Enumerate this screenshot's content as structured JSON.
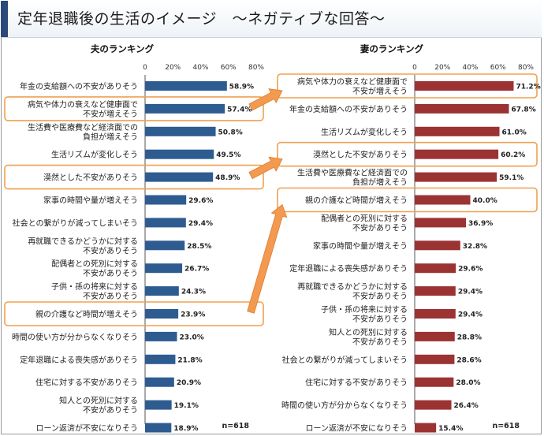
{
  "page_title": "定年退職後の生活のイメージ　～ネガティブな回答～",
  "colors": {
    "husband_bar": "#2e5c91",
    "wife_bar": "#9b3333",
    "highlight": "#f0a050",
    "arrow": "#f29a50",
    "axis": "#555555"
  },
  "chart_data": [
    {
      "type": "bar",
      "orientation": "horizontal",
      "title": "夫のランキング",
      "xlim": [
        0,
        80
      ],
      "xticks": [
        "0",
        "20%",
        "40%",
        "60%",
        "80%"
      ],
      "sample_size": "n=618",
      "categories": [
        [
          "年金の支給額への不安がありそう"
        ],
        [
          "病気や体力の衰えなど健康面で",
          "不安が増えそう"
        ],
        [
          "生活費や医療費など経済面での",
          "負担が増えそう"
        ],
        [
          "生活リズムが変化しそう"
        ],
        [
          "漠然とした不安がありそう"
        ],
        [
          "家事の時間や量が増えそう"
        ],
        [
          "社会との繋がりが減ってしまいそう"
        ],
        [
          "再就職できるかどうかに対する",
          "不安がありそう"
        ],
        [
          "配偶者との死別に対する",
          "不安がありそう"
        ],
        [
          "子供・孫の将来に対する",
          "不安がありそう"
        ],
        [
          "親の介護など時間が増えそう"
        ],
        [
          "時間の使い方が分からなくなりそう"
        ],
        [
          "定年退職による喪失感がありそう"
        ],
        [
          "住宅に対する不安がありそう"
        ],
        [
          "知人との死別に対する",
          "不安がありそう"
        ],
        [
          "ローン返済が不安になりそう"
        ]
      ],
      "values": [
        58.9,
        57.4,
        50.8,
        49.5,
        48.9,
        29.6,
        29.4,
        28.5,
        26.7,
        24.3,
        23.9,
        23.0,
        21.8,
        20.9,
        19.1,
        18.9
      ],
      "value_labels": [
        "58.9%",
        "57.4%",
        "50.8%",
        "49.5%",
        "48.9%",
        "29.6%",
        "29.4%",
        "28.5%",
        "26.7%",
        "24.3%",
        "23.9%",
        "23.0%",
        "21.8%",
        "20.9%",
        "19.1%",
        "18.9%"
      ],
      "highlighted_indices": [
        1,
        4,
        10
      ]
    },
    {
      "type": "bar",
      "orientation": "horizontal",
      "title": "妻のランキング",
      "xlim": [
        0,
        80
      ],
      "xticks": [
        "0",
        "20%",
        "40%",
        "60%",
        "80%"
      ],
      "sample_size": "n=618",
      "categories": [
        [
          "病気や体力の衰えなど健康面で",
          "不安が増えそう"
        ],
        [
          "年金の支給額への不安がありそう"
        ],
        [
          "生活リズムが変化しそう"
        ],
        [
          "漠然とした不安がありそう"
        ],
        [
          "生活費や医療費など経済面での",
          "負担が増えそう"
        ],
        [
          "親の介護など時間が増えそう"
        ],
        [
          "配偶者との死別に対する",
          "不安がありそう"
        ],
        [
          "家事の時間や量が増えそう"
        ],
        [
          "定年退職による喪失感がありそう"
        ],
        [
          "再就職できるかどうかに対する",
          "不安がありそう"
        ],
        [
          "子供・孫の将来に対する",
          "不安がありそう"
        ],
        [
          "知人との死別に対する",
          "不安がありそう"
        ],
        [
          "社会との繋がりが減ってしまいそう"
        ],
        [
          "住宅に対する不安がありそう"
        ],
        [
          "時間の使い方が分からなくなりそう"
        ],
        [
          "ローン返済が不安になりそう"
        ]
      ],
      "values": [
        71.2,
        67.8,
        61.0,
        60.2,
        59.1,
        40.0,
        36.9,
        32.8,
        29.6,
        29.4,
        29.4,
        28.8,
        28.6,
        28.0,
        26.4,
        15.4
      ],
      "value_labels": [
        "71.2%",
        "67.8%",
        "61.0%",
        "60.2%",
        "59.1%",
        "40.0%",
        "36.9%",
        "32.8%",
        "29.6%",
        "29.4%",
        "29.4%",
        "28.8%",
        "28.6%",
        "28.0%",
        "26.4%",
        "15.4%"
      ],
      "highlighted_indices": [
        0,
        3,
        5
      ]
    }
  ],
  "arrows": [
    {
      "from": [
        0,
        1
      ],
      "to": [
        1,
        0
      ]
    },
    {
      "from": [
        0,
        4
      ],
      "to": [
        1,
        3
      ]
    },
    {
      "from": [
        0,
        10
      ],
      "to": [
        1,
        5
      ]
    }
  ]
}
